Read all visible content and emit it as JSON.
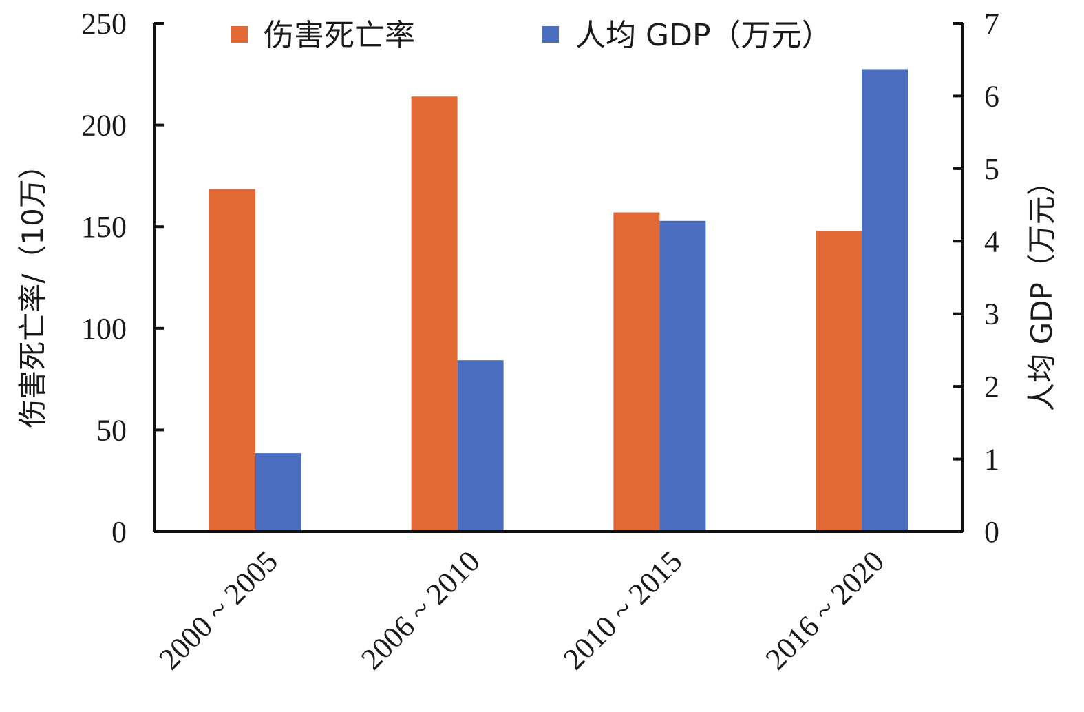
{
  "chart_data": {
    "type": "bar",
    "categories": [
      "2000 ~ 2005",
      "2006 ~ 2010",
      "2010 ~ 2015",
      "2016 ~ 2020"
    ],
    "series": [
      {
        "name": "伤害死亡率",
        "axis": "left",
        "color": "#e26834",
        "values": [
          168.5,
          214,
          157,
          148
        ]
      },
      {
        "name": "人均 GDP（万元）",
        "axis": "right",
        "color": "#4a6dbf",
        "values": [
          1.08,
          2.36,
          4.28,
          6.37
        ]
      }
    ],
    "ylabel": "伤害死亡率/（10万）",
    "y2label": "人均 GDP（万元）",
    "ylim": [
      0,
      250
    ],
    "y2lim": [
      0,
      7
    ],
    "yticks": [
      "0",
      "50",
      "100",
      "150",
      "200",
      "250"
    ],
    "y2ticks": [
      "0",
      "1",
      "2",
      "3",
      "4",
      "5",
      "6",
      "7"
    ],
    "legend_position": "top",
    "grid": false
  }
}
